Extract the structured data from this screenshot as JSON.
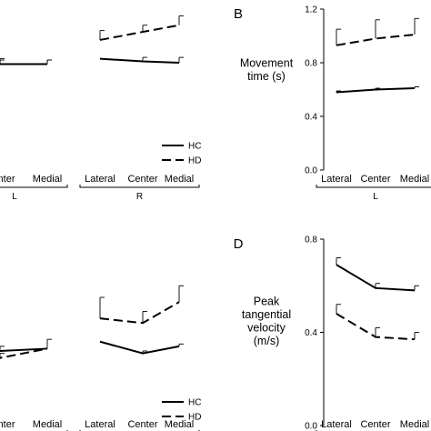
{
  "legend": {
    "hc": "HC",
    "hd": "HD"
  },
  "chart_data": [
    {
      "panel": "A",
      "type": "line",
      "title": "",
      "letter": "",
      "ylabel": [],
      "ylim": [
        0,
        1.2
      ],
      "yticks": [],
      "categories": [
        "Lateral",
        "Center",
        "Medial",
        "Lateral",
        "Center",
        "Medial"
      ],
      "groups": [
        {
          "label": "L",
          "indices": [
            0,
            1,
            2
          ]
        },
        {
          "label": "R",
          "indices": [
            3,
            4,
            5
          ]
        }
      ],
      "legend_position": "bottom-right",
      "series": [
        {
          "name": "HC",
          "segments": [
            [
              0.78,
              0.79,
              0.79
            ],
            [
              0.83,
              0.81,
              0.8
            ]
          ],
          "error": [
            [
              0.03,
              0.03,
              0.03
            ],
            [
              0.0,
              0.03,
              0.04
            ]
          ]
        },
        {
          "name": "HD",
          "segments": [
            [
              0.77,
              0.79,
              0.79
            ],
            [
              0.97,
              1.03,
              1.08
            ]
          ],
          "error": [
            [
              0.03,
              0.04,
              0.03
            ],
            [
              0.07,
              0.05,
              0.07
            ]
          ]
        }
      ]
    },
    {
      "panel": "B",
      "type": "line",
      "title": "",
      "letter": "B",
      "ylabel": [
        "Movement",
        "time (s)"
      ],
      "ylim": [
        0,
        1.2
      ],
      "yticks": [
        "0.0",
        "0.4",
        "0.8",
        "1.2"
      ],
      "categories": [
        "Lateral",
        "Center",
        "Medial"
      ],
      "groups": [
        {
          "label": "L",
          "indices": [
            0,
            1,
            2
          ]
        }
      ],
      "legend_position": "",
      "series": [
        {
          "name": "HC",
          "segments": [
            [
              0.58,
              0.6,
              0.61
            ]
          ],
          "error": [
            [
              0.01,
              0.01,
              0.01
            ]
          ]
        },
        {
          "name": "HD",
          "segments": [
            [
              0.93,
              0.98,
              1.01
            ]
          ],
          "error": [
            [
              0.12,
              0.14,
              0.12
            ]
          ]
        }
      ]
    },
    {
      "panel": "C",
      "type": "line",
      "title": "",
      "letter": "",
      "ylabel": [],
      "ylim": [
        0,
        0.8
      ],
      "yticks": [],
      "categories": [
        "Lateral",
        "Center",
        "Medial",
        "Lateral",
        "Center",
        "Medial"
      ],
      "groups": [
        {
          "label": "L",
          "indices": [
            0,
            1,
            2
          ]
        },
        {
          "label": "R",
          "indices": [
            3,
            4,
            5
          ]
        }
      ],
      "legend_position": "bottom-right",
      "series": [
        {
          "name": "HC",
          "segments": [
            [
              0.34,
              0.32,
              0.33
            ],
            [
              0.36,
              0.31,
              0.34
            ]
          ],
          "error": [
            [
              0.02,
              0.02,
              0.04
            ],
            [
              0.0,
              0.01,
              0.01
            ]
          ]
        },
        {
          "name": "HD",
          "segments": [
            [
              0.33,
              0.29,
              0.33
            ],
            [
              0.46,
              0.44,
              0.53
            ]
          ],
          "error": [
            [
              0.0,
              0.02,
              0.0
            ],
            [
              0.09,
              0.05,
              0.07
            ]
          ]
        }
      ]
    },
    {
      "panel": "D",
      "type": "line",
      "title": "",
      "letter": "D",
      "ylabel": [
        "Peak",
        "tangential",
        "velocity",
        "(m/s)"
      ],
      "ylim": [
        0,
        0.8
      ],
      "yticks": [
        "0.0",
        "0.4",
        "0.8"
      ],
      "categories": [
        "Lateral",
        "Center",
        "Medial"
      ],
      "groups": [
        {
          "label": "L",
          "indices": [
            0,
            1,
            2
          ]
        }
      ],
      "legend_position": "",
      "series": [
        {
          "name": "HC",
          "segments": [
            [
              0.69,
              0.59,
              0.58
            ]
          ],
          "error": [
            [
              0.03,
              0.02,
              0.02
            ]
          ]
        },
        {
          "name": "HD",
          "segments": [
            [
              0.48,
              0.38,
              0.37
            ]
          ],
          "error": [
            [
              0.04,
              0.04,
              0.03
            ]
          ]
        }
      ]
    }
  ]
}
